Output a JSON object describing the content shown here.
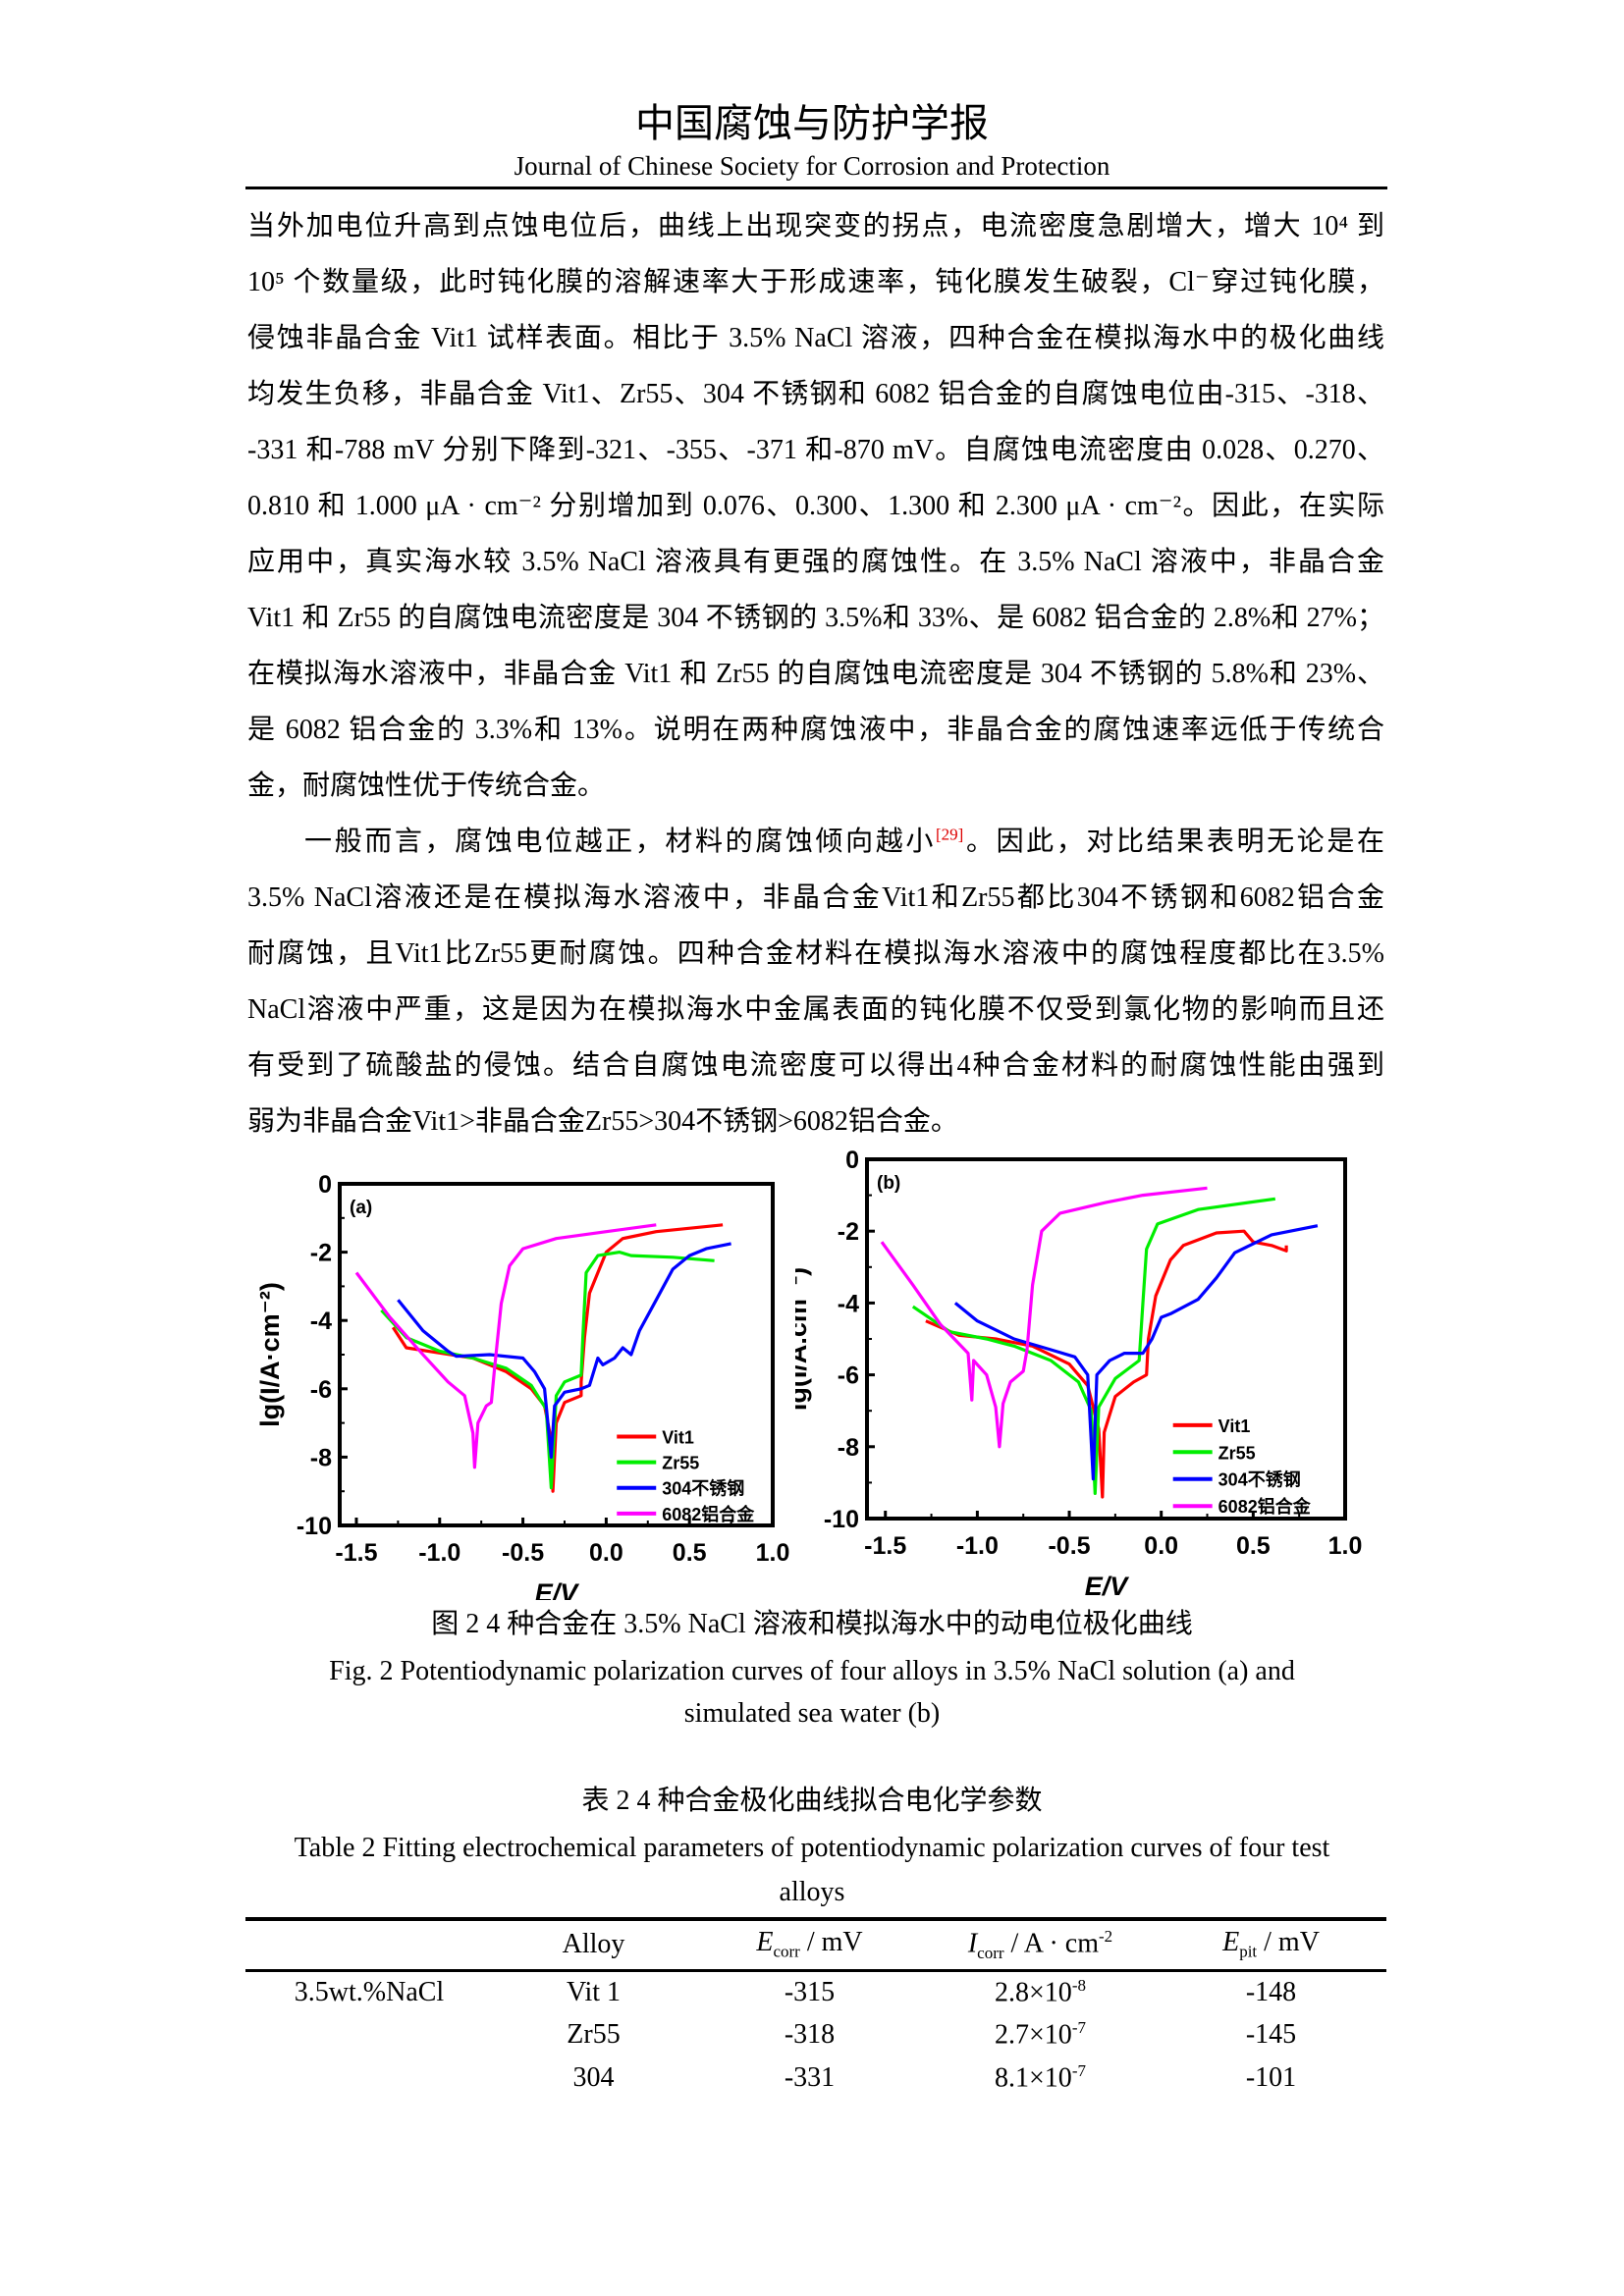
{
  "header": {
    "title": "中国腐蚀与防护学报",
    "subtitle": "Journal of Chinese Society for Corrosion and Protection"
  },
  "paragraphs": [
    {
      "lines": [
        "当外加电位升高到点蚀电位后，曲线上出现突变的拐点，电流密度急剧增大，增大 10⁴ 到",
        "10⁵ 个数量级，此时钝化膜的溶解速率大于形成速率，钝化膜发生破裂，Cl⁻穿过钝化膜，",
        "侵蚀非晶合金 Vit1 试样表面。相比于 3.5% NaCl 溶液，四种合金在模拟海水中的极化曲线",
        "均发生负移，非晶合金 Vit1、Zr55、304 不锈钢和 6082 铝合金的自腐蚀电位由-315、-318、",
        "-331 和-788 mV 分别下降到-321、-355、-371 和-870 mV。自腐蚀电流密度由 0.028、0.270、",
        "0.810 和 1.000 μA · cm⁻² 分别增加到 0.076、0.300、1.300 和 2.300 μA · cm⁻²。因此，在实际",
        "应用中，真实海水较 3.5% NaCl 溶液具有更强的腐蚀性。在 3.5% NaCl 溶液中，非晶合金",
        "Vit1 和 Zr55 的自腐蚀电流密度是 304 不锈钢的 3.5%和 33%、是 6082 铝合金的 2.8%和 27%；",
        "在模拟海水溶液中，非晶合金 Vit1 和 Zr55 的自腐蚀电流密度是 304 不锈钢的 5.8%和 23%、",
        "是 6082 铝合金的 3.3%和 13%。说明在两种腐蚀液中，非晶合金的腐蚀速率远低于传统合",
        "金，耐腐蚀性优于传统合金。"
      ]
    },
    {
      "first_line_before_ref": "一般而言，腐蚀电位越正，材料的腐蚀倾向越小",
      "ref": "[29]",
      "first_line_after_ref": "。因此，对比结果表明无论是在",
      "lines": [
        "3.5% NaCl溶液还是在模拟海水溶液中，非晶合金Vit1和Zr55都比304不锈钢和6082铝合金",
        "耐腐蚀，且Vit1比Zr55更耐腐蚀。四种合金材料在模拟海水溶液中的腐蚀程度都比在3.5%",
        "NaCl溶液中严重，这是因为在模拟海水中金属表面的钝化膜不仅受到氯化物的影响而且还",
        "有受到了硫酸盐的侵蚀。结合自腐蚀电流密度可以得出4种合金材料的耐腐蚀性能由强到",
        "弱为非晶合金Vit1>非晶合金Zr55>304不锈钢>6082铝合金。"
      ]
    }
  ],
  "figure": {
    "caption_cn": "图 2 4 种合金在 3.5% NaCl 溶液和模拟海水中的动电位极化曲线",
    "caption_en_1": "Fig. 2 Potentiodynamic polarization curves of four alloys in 3.5% NaCl  solution (a) and",
    "caption_en_2": "simulated sea water (b)"
  },
  "chart_data": [
    {
      "type": "line",
      "panel_label": "(a)",
      "xlabel": "E/V",
      "ylabel": "lg(I/A·cm⁻²)",
      "xlim": [
        -1.6,
        1.0
      ],
      "ylim": [
        -10,
        0
      ],
      "xticks": [
        -1.5,
        -1.0,
        -0.5,
        0.0,
        0.5,
        1.0
      ],
      "xtick_labels": [
        "-1.5",
        "-1.0",
        "-0.5",
        "0.0",
        "0.5",
        "1.0"
      ],
      "yticks": [
        0,
        -2,
        -4,
        -6,
        -8,
        -10
      ],
      "ytick_labels": [
        "0",
        "-2",
        "-4",
        "-6",
        "-8",
        "-10"
      ],
      "grid": false,
      "legend_position": "bottom-right",
      "series": [
        {
          "name": "Vit1",
          "color": "#ff0000",
          "points": [
            [
              -1.28,
              -4.2
            ],
            [
              -1.2,
              -4.8
            ],
            [
              -1.0,
              -4.95
            ],
            [
              -0.8,
              -5.1
            ],
            [
              -0.6,
              -5.5
            ],
            [
              -0.45,
              -6.0
            ],
            [
              -0.37,
              -6.5
            ],
            [
              -0.33,
              -7.5
            ],
            [
              -0.32,
              -9.0
            ],
            [
              -0.3,
              -7.0
            ],
            [
              -0.25,
              -6.4
            ],
            [
              -0.15,
              -6.2
            ],
            [
              -0.15,
              -5.8
            ],
            [
              -0.13,
              -4.5
            ],
            [
              -0.1,
              -3.2
            ],
            [
              0.0,
              -2.0
            ],
            [
              0.1,
              -1.6
            ],
            [
              0.3,
              -1.4
            ],
            [
              0.7,
              -1.2
            ]
          ]
        },
        {
          "name": "Zr55",
          "color": "#00ee00",
          "points": [
            [
              -1.35,
              -3.7
            ],
            [
              -1.2,
              -4.5
            ],
            [
              -1.0,
              -4.9
            ],
            [
              -0.8,
              -5.1
            ],
            [
              -0.6,
              -5.4
            ],
            [
              -0.45,
              -5.9
            ],
            [
              -0.36,
              -6.6
            ],
            [
              -0.33,
              -8.9
            ],
            [
              -0.3,
              -6.2
            ],
            [
              -0.25,
              -5.8
            ],
            [
              -0.15,
              -5.6
            ],
            [
              -0.14,
              -4.5
            ],
            [
              -0.12,
              -2.6
            ],
            [
              -0.05,
              -2.1
            ],
            [
              0.08,
              -2.0
            ],
            [
              0.15,
              -2.1
            ],
            [
              0.4,
              -2.15
            ],
            [
              0.65,
              -2.25
            ]
          ]
        },
        {
          "name": "304不锈钢",
          "color": "#0000ff",
          "points": [
            [
              -1.25,
              -3.4
            ],
            [
              -1.1,
              -4.3
            ],
            [
              -0.95,
              -4.9
            ],
            [
              -0.9,
              -5.05
            ],
            [
              -0.7,
              -5.0
            ],
            [
              -0.5,
              -5.1
            ],
            [
              -0.43,
              -5.5
            ],
            [
              -0.37,
              -6.0
            ],
            [
              -0.33,
              -8.0
            ],
            [
              -0.31,
              -6.5
            ],
            [
              -0.25,
              -6.1
            ],
            [
              -0.15,
              -6.0
            ],
            [
              -0.1,
              -5.9
            ],
            [
              -0.05,
              -5.1
            ],
            [
              -0.02,
              -5.3
            ],
            [
              0.05,
              -5.1
            ],
            [
              0.1,
              -4.8
            ],
            [
              0.15,
              -5.0
            ],
            [
              0.2,
              -4.3
            ],
            [
              0.3,
              -3.4
            ],
            [
              0.4,
              -2.5
            ],
            [
              0.5,
              -2.1
            ],
            [
              0.6,
              -1.9
            ],
            [
              0.75,
              -1.75
            ]
          ]
        },
        {
          "name": "6082铝合金",
          "color": "#ff00ff",
          "points": [
            [
              -1.5,
              -2.6
            ],
            [
              -1.3,
              -3.9
            ],
            [
              -1.1,
              -5.0
            ],
            [
              -0.95,
              -5.8
            ],
            [
              -0.85,
              -6.2
            ],
            [
              -0.8,
              -7.3
            ],
            [
              -0.79,
              -8.3
            ],
            [
              -0.77,
              -7.0
            ],
            [
              -0.72,
              -6.5
            ],
            [
              -0.69,
              -6.4
            ],
            [
              -0.67,
              -5.4
            ],
            [
              -0.63,
              -3.5
            ],
            [
              -0.58,
              -2.4
            ],
            [
              -0.5,
              -1.9
            ],
            [
              -0.3,
              -1.6
            ],
            [
              0.0,
              -1.4
            ],
            [
              0.3,
              -1.2
            ]
          ]
        }
      ]
    },
    {
      "type": "line",
      "panel_label": "(b)",
      "xlabel": "E/V",
      "ylabel": "lg(I/A.cm⁻²)",
      "xlim": [
        -1.6,
        1.0
      ],
      "ylim": [
        -10,
        0
      ],
      "xticks": [
        -1.5,
        -1.0,
        -0.5,
        0.0,
        0.5,
        1.0
      ],
      "xtick_labels": [
        "-1.5",
        "-1.0",
        "-0.5",
        "0.0",
        "0.5",
        "1.0"
      ],
      "yticks": [
        0,
        -2,
        -4,
        -6,
        -8,
        -10
      ],
      "ytick_labels": [
        "0",
        "-2",
        "-4",
        "-6",
        "-8",
        "-10"
      ],
      "grid": false,
      "legend_position": "bottom-right",
      "series": [
        {
          "name": "Vit1",
          "color": "#ff0000",
          "points": [
            [
              -1.28,
              -4.5
            ],
            [
              -1.1,
              -4.9
            ],
            [
              -0.9,
              -5.0
            ],
            [
              -0.7,
              -5.2
            ],
            [
              -0.5,
              -5.7
            ],
            [
              -0.4,
              -6.3
            ],
            [
              -0.34,
              -7.5
            ],
            [
              -0.32,
              -9.4
            ],
            [
              -0.31,
              -7.6
            ],
            [
              -0.25,
              -6.6
            ],
            [
              -0.15,
              -6.2
            ],
            [
              -0.08,
              -6.0
            ],
            [
              -0.07,
              -5.0
            ],
            [
              -0.03,
              -3.8
            ],
            [
              0.05,
              -2.8
            ],
            [
              0.12,
              -2.4
            ],
            [
              0.3,
              -2.05
            ],
            [
              0.45,
              -2.0
            ],
            [
              0.5,
              -2.3
            ],
            [
              0.6,
              -2.4
            ],
            [
              0.68,
              -2.55
            ],
            [
              0.68,
              -2.4
            ]
          ]
        },
        {
          "name": "Zr55",
          "color": "#00ee00",
          "points": [
            [
              -1.35,
              -4.1
            ],
            [
              -1.15,
              -4.8
            ],
            [
              -0.95,
              -5.0
            ],
            [
              -0.8,
              -5.2
            ],
            [
              -0.6,
              -5.6
            ],
            [
              -0.45,
              -6.2
            ],
            [
              -0.38,
              -7.0
            ],
            [
              -0.36,
              -9.3
            ],
            [
              -0.34,
              -6.9
            ],
            [
              -0.25,
              -6.1
            ],
            [
              -0.12,
              -5.6
            ],
            [
              -0.1,
              -4.0
            ],
            [
              -0.08,
              -2.5
            ],
            [
              -0.02,
              -1.8
            ],
            [
              0.2,
              -1.4
            ],
            [
              0.62,
              -1.1
            ]
          ]
        },
        {
          "name": "304不锈钢",
          "color": "#0000ff",
          "points": [
            [
              -1.12,
              -4.0
            ],
            [
              -1.0,
              -4.5
            ],
            [
              -0.8,
              -5.0
            ],
            [
              -0.6,
              -5.3
            ],
            [
              -0.47,
              -5.5
            ],
            [
              -0.4,
              -6.0
            ],
            [
              -0.37,
              -8.9
            ],
            [
              -0.35,
              -6.0
            ],
            [
              -0.28,
              -5.6
            ],
            [
              -0.2,
              -5.4
            ],
            [
              -0.1,
              -5.4
            ],
            [
              -0.05,
              -5.0
            ],
            [
              0.0,
              -4.4
            ],
            [
              0.05,
              -4.3
            ],
            [
              0.2,
              -3.9
            ],
            [
              0.3,
              -3.3
            ],
            [
              0.4,
              -2.6
            ],
            [
              0.6,
              -2.1
            ],
            [
              0.85,
              -1.85
            ]
          ]
        },
        {
          "name": "6082铝合金",
          "color": "#ff00ff",
          "points": [
            [
              -1.52,
              -2.3
            ],
            [
              -1.35,
              -3.5
            ],
            [
              -1.2,
              -4.6
            ],
            [
              -1.05,
              -5.4
            ],
            [
              -1.03,
              -6.7
            ],
            [
              -1.02,
              -5.6
            ],
            [
              -0.95,
              -6.0
            ],
            [
              -0.9,
              -6.9
            ],
            [
              -0.88,
              -8.0
            ],
            [
              -0.86,
              -6.8
            ],
            [
              -0.82,
              -6.2
            ],
            [
              -0.75,
              -5.9
            ],
            [
              -0.73,
              -5.3
            ],
            [
              -0.7,
              -3.5
            ],
            [
              -0.65,
              -2.0
            ],
            [
              -0.55,
              -1.5
            ],
            [
              -0.3,
              -1.2
            ],
            [
              -0.1,
              -1.0
            ],
            [
              0.25,
              -0.8
            ]
          ]
        }
      ]
    }
  ],
  "table": {
    "title_cn": "表 2 4 种合金极化曲线拟合电化学参数",
    "title_en_1": "Table 2 Fitting electrochemical parameters of potentiodynamic polarization curves of four test",
    "title_en_2": "alloys",
    "headers": {
      "alloy": "Alloy",
      "ecorr_sym": "E",
      "ecorr_sub": "corr",
      "ecorr_unit": " / mV",
      "icorr_sym": "I",
      "icorr_sub": "corr",
      "icorr_unit": " / A · cm",
      "icorr_sup": "-2",
      "epit_sym": "E",
      "epit_sub": "pit",
      "epit_unit": " / mV"
    },
    "rows": [
      {
        "group": "3.5wt.%NaCl",
        "alloy": "Vit 1",
        "ecorr": "-315",
        "icorr_mant": "2.8×10",
        "icorr_exp": "-8",
        "epit": "-148"
      },
      {
        "group": "",
        "alloy": "Zr55",
        "ecorr": "-318",
        "icorr_mant": "2.7×10",
        "icorr_exp": "-7",
        "epit": "-145"
      },
      {
        "group": "",
        "alloy": "304",
        "ecorr": "-331",
        "icorr_mant": "8.1×10",
        "icorr_exp": "-7",
        "epit": "-101"
      }
    ]
  }
}
